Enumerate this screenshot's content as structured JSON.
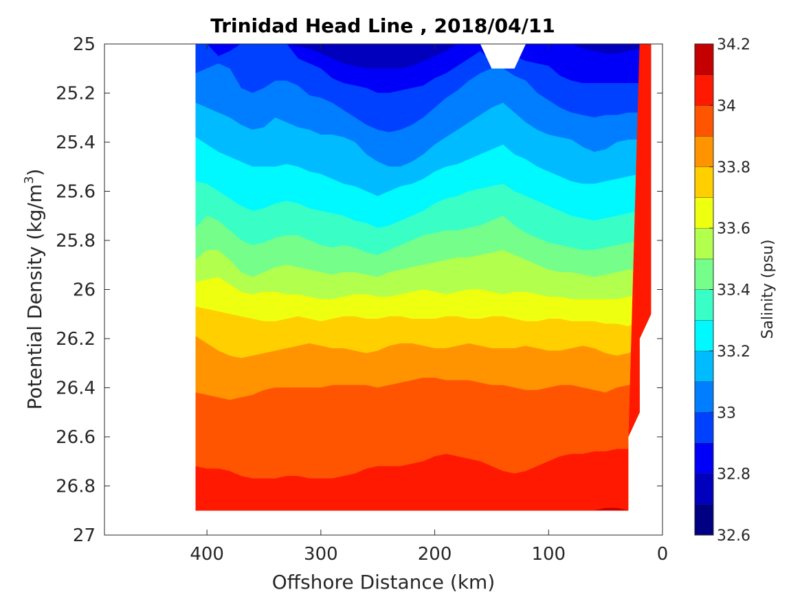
{
  "chart_data": {
    "type": "heatmap",
    "subtype": "filled-contour",
    "title": "Trinidad Head Line , 2018/04/11",
    "xlabel": "Offshore Distance (km)",
    "ylabel_main": "Potential Density (kg/m",
    "ylabel_sup": "3",
    "ylabel_end": ")",
    "colorbar_label": "Salinity (psu)",
    "xlim": [
      490,
      0
    ],
    "ylim": [
      25,
      27
    ],
    "x_reversed": true,
    "y_reversed": true,
    "xticks": [
      400,
      300,
      200,
      100,
      0
    ],
    "xtick_labels": [
      "400",
      "300",
      "200",
      "100",
      "0"
    ],
    "yticks": [
      25,
      25.2,
      25.4,
      25.6,
      25.8,
      26,
      26.2,
      26.4,
      26.6,
      26.8,
      27
    ],
    "ytick_labels": [
      "25",
      "25.2",
      "25.4",
      "25.6",
      "25.8",
      "26",
      "26.2",
      "26.4",
      "26.6",
      "26.8",
      "27"
    ],
    "colorbar_range": [
      32.6,
      34.2
    ],
    "colorbar_ticks": [
      32.6,
      32.8,
      33,
      33.2,
      33.4,
      33.6,
      33.8,
      34,
      34.2
    ],
    "colorbar_tick_labels": [
      "32.6",
      "32.8",
      "33",
      "33.2",
      "33.4",
      "33.6",
      "33.8",
      "34",
      "34.2"
    ],
    "levels": [
      32.6,
      32.7,
      32.8,
      32.9,
      33.0,
      33.1,
      33.2,
      33.3,
      33.4,
      33.5,
      33.6,
      33.7,
      33.8,
      33.9,
      34.0,
      34.1,
      34.2
    ],
    "level_colors": [
      "#000083",
      "#0000bd",
      "#0000f9",
      "#0041ff",
      "#007eff",
      "#00bbff",
      "#00f8ff",
      "#39ffc7",
      "#75ff8a",
      "#b2ff4d",
      "#efff10",
      "#ffcf00",
      "#ff9300",
      "#ff5500",
      "#ff1900",
      "#c50000"
    ],
    "data_extent_x": [
      410,
      10
    ],
    "data_extent_y": [
      25,
      26.9
    ],
    "contour_x": [
      410,
      400,
      390,
      380,
      370,
      360,
      350,
      340,
      330,
      320,
      310,
      300,
      290,
      280,
      270,
      260,
      250,
      240,
      230,
      220,
      210,
      200,
      190,
      180,
      170,
      160,
      150,
      140,
      130,
      120,
      110,
      100,
      90,
      80,
      70,
      60,
      50,
      40,
      30,
      20,
      10
    ],
    "contours": [
      {
        "level": 32.8,
        "y": [
          null,
          null,
          null,
          null,
          null,
          null,
          null,
          null,
          null,
          25.01,
          25.02,
          25.04,
          25.06,
          25.08,
          25.09,
          25.1,
          25.1,
          25.1,
          25.1,
          25.09,
          25.07,
          25.05,
          25.03,
          25.0,
          null,
          null,
          null,
          null,
          null,
          null,
          null,
          null,
          null,
          25.0,
          25.02,
          25.03,
          25.04,
          25.04,
          25.03,
          25.02,
          25.0
        ]
      },
      {
        "level": 32.9,
        "y": [
          null,
          25.0,
          25.05,
          25.03,
          null,
          null,
          null,
          null,
          null,
          25.06,
          25.08,
          25.1,
          25.14,
          25.16,
          25.17,
          25.18,
          25.2,
          25.2,
          25.19,
          25.18,
          25.17,
          25.14,
          25.12,
          25.09,
          25.06,
          25.03,
          25.07,
          25.07,
          25.05,
          25.07,
          25.08,
          25.09,
          25.13,
          25.15,
          25.16,
          25.16,
          25.16,
          25.16,
          25.16,
          25.16,
          25.16
        ]
      },
      {
        "level": 33.0,
        "y": [
          25.12,
          25.1,
          25.08,
          25.1,
          25.18,
          25.2,
          25.18,
          25.15,
          25.15,
          25.17,
          25.21,
          25.22,
          25.24,
          25.27,
          25.3,
          25.33,
          25.35,
          25.36,
          25.35,
          25.33,
          25.3,
          25.26,
          25.22,
          25.19,
          25.15,
          25.12,
          25.1,
          25.1,
          25.13,
          25.15,
          25.2,
          25.23,
          25.26,
          25.28,
          25.29,
          25.3,
          25.29,
          25.29,
          25.28,
          25.28,
          25.27
        ]
      },
      {
        "level": 33.1,
        "y": [
          25.24,
          25.26,
          25.28,
          25.3,
          25.33,
          25.35,
          25.34,
          25.3,
          25.32,
          25.34,
          25.35,
          25.37,
          25.37,
          25.38,
          25.4,
          25.45,
          25.48,
          25.5,
          25.5,
          25.48,
          25.45,
          25.41,
          25.38,
          25.35,
          25.32,
          25.29,
          25.26,
          25.24,
          25.28,
          25.32,
          25.35,
          25.37,
          25.38,
          25.39,
          25.42,
          25.44,
          25.43,
          25.4,
          25.39,
          25.39,
          25.39
        ]
      },
      {
        "level": 33.2,
        "y": [
          25.38,
          25.41,
          25.44,
          25.46,
          25.48,
          25.5,
          25.5,
          25.5,
          25.49,
          25.5,
          25.52,
          25.53,
          25.55,
          25.57,
          25.58,
          25.6,
          25.62,
          25.6,
          25.58,
          25.57,
          25.55,
          25.52,
          25.5,
          25.49,
          25.47,
          25.45,
          25.43,
          25.41,
          25.45,
          25.47,
          25.5,
          25.52,
          25.54,
          25.56,
          25.57,
          25.57,
          25.56,
          25.55,
          25.54,
          25.53,
          25.52
        ]
      },
      {
        "level": 33.3,
        "y": [
          25.56,
          25.57,
          25.6,
          25.63,
          25.66,
          25.68,
          25.67,
          25.65,
          25.64,
          25.65,
          25.67,
          25.68,
          25.69,
          25.7,
          25.72,
          25.73,
          25.75,
          25.74,
          25.72,
          25.7,
          25.68,
          25.65,
          25.63,
          25.62,
          25.6,
          25.59,
          25.58,
          25.57,
          25.6,
          25.62,
          25.64,
          25.66,
          25.68,
          25.7,
          25.71,
          25.72,
          25.71,
          25.7,
          25.69,
          25.68,
          25.67
        ]
      },
      {
        "level": 33.4,
        "y": [
          25.75,
          25.7,
          25.72,
          25.76,
          25.8,
          25.82,
          25.81,
          25.79,
          25.78,
          25.78,
          25.8,
          25.82,
          25.83,
          25.82,
          25.83,
          25.85,
          25.86,
          25.84,
          25.82,
          25.8,
          25.78,
          25.77,
          25.76,
          25.76,
          25.75,
          25.74,
          25.72,
          25.7,
          25.74,
          25.77,
          25.79,
          25.81,
          25.82,
          25.83,
          25.84,
          25.84,
          25.83,
          25.82,
          25.81,
          25.8,
          25.8
        ]
      },
      {
        "level": 33.5,
        "y": [
          25.88,
          25.84,
          25.84,
          25.88,
          25.93,
          25.95,
          25.93,
          25.91,
          25.9,
          25.91,
          25.92,
          25.93,
          25.94,
          25.93,
          25.93,
          25.94,
          25.95,
          25.93,
          25.92,
          25.91,
          25.9,
          25.89,
          25.88,
          25.87,
          25.87,
          25.86,
          25.85,
          25.84,
          25.86,
          25.88,
          25.9,
          25.92,
          25.93,
          25.93,
          25.94,
          25.95,
          25.94,
          25.93,
          25.92,
          25.92,
          25.92
        ]
      },
      {
        "level": 33.6,
        "y": [
          25.97,
          25.96,
          25.95,
          25.98,
          26.01,
          26.02,
          26.01,
          26.01,
          26.02,
          26.02,
          26.03,
          26.04,
          26.04,
          26.03,
          26.02,
          26.02,
          26.03,
          26.03,
          26.02,
          26.01,
          26.0,
          26.01,
          26.02,
          26.01,
          26.0,
          26.0,
          26.01,
          26.02,
          26.01,
          26.01,
          26.02,
          26.03,
          26.03,
          26.04,
          26.04,
          26.04,
          26.04,
          26.04,
          26.03,
          26.02,
          26.01
        ]
      },
      {
        "level": 33.7,
        "y": [
          26.07,
          26.08,
          26.09,
          26.1,
          26.11,
          26.12,
          26.13,
          26.13,
          26.12,
          26.11,
          26.12,
          26.13,
          26.12,
          26.11,
          26.11,
          26.12,
          26.12,
          26.11,
          26.11,
          26.12,
          26.12,
          26.12,
          26.11,
          26.11,
          26.12,
          26.12,
          26.11,
          26.11,
          26.12,
          26.13,
          26.13,
          26.12,
          26.12,
          26.13,
          26.13,
          26.13,
          26.14,
          26.14,
          26.15,
          26.13,
          26.11
        ]
      },
      {
        "level": 33.8,
        "y": [
          26.19,
          26.22,
          26.25,
          26.27,
          26.28,
          26.27,
          26.26,
          26.25,
          26.24,
          26.23,
          26.22,
          26.23,
          26.24,
          26.24,
          26.25,
          26.26,
          26.25,
          26.23,
          26.22,
          26.22,
          26.23,
          26.24,
          26.24,
          26.23,
          26.22,
          26.23,
          26.24,
          26.24,
          26.24,
          26.23,
          26.24,
          26.25,
          26.25,
          26.24,
          26.23,
          26.24,
          26.26,
          26.27,
          26.26,
          26.24,
          26.22
        ]
      },
      {
        "level": 33.9,
        "y": [
          26.42,
          26.43,
          26.44,
          26.45,
          26.44,
          26.43,
          26.41,
          26.4,
          26.4,
          26.4,
          26.4,
          26.4,
          26.39,
          26.39,
          26.39,
          26.39,
          26.4,
          26.39,
          26.38,
          26.37,
          26.36,
          26.36,
          26.37,
          26.37,
          26.37,
          26.38,
          26.39,
          26.39,
          26.4,
          26.41,
          26.41,
          26.4,
          26.39,
          26.39,
          26.4,
          26.41,
          26.42,
          26.4,
          26.39,
          26.39,
          26.39
        ]
      },
      {
        "level": 34.0,
        "y": [
          26.72,
          26.73,
          26.73,
          26.74,
          26.76,
          26.77,
          26.77,
          26.77,
          26.76,
          26.76,
          26.77,
          26.77,
          26.77,
          26.76,
          26.75,
          26.73,
          26.72,
          26.72,
          26.72,
          26.71,
          26.7,
          26.68,
          26.67,
          26.68,
          26.69,
          26.7,
          26.72,
          26.74,
          26.75,
          26.74,
          26.72,
          26.7,
          26.68,
          26.67,
          26.67,
          26.66,
          26.66,
          26.65,
          26.65,
          null,
          null
        ]
      },
      {
        "level": 34.1,
        "y": [
          null,
          null,
          null,
          null,
          null,
          null,
          null,
          null,
          null,
          null,
          null,
          null,
          null,
          null,
          null,
          null,
          null,
          null,
          null,
          null,
          null,
          null,
          null,
          null,
          null,
          null,
          null,
          null,
          null,
          null,
          null,
          null,
          null,
          null,
          null,
          26.9,
          26.89,
          26.89,
          26.9,
          null,
          null
        ]
      }
    ],
    "notches": [
      {
        "x": [
          160,
          150,
          130,
          120
        ],
        "y": [
          25,
          25.1,
          25.1,
          25
        ]
      }
    ],
    "right_edge": {
      "y": [
        25,
        26.1,
        26.2,
        26.5,
        26.6,
        26.9
      ],
      "x": [
        10,
        10,
        20,
        20,
        30,
        30
      ]
    }
  }
}
